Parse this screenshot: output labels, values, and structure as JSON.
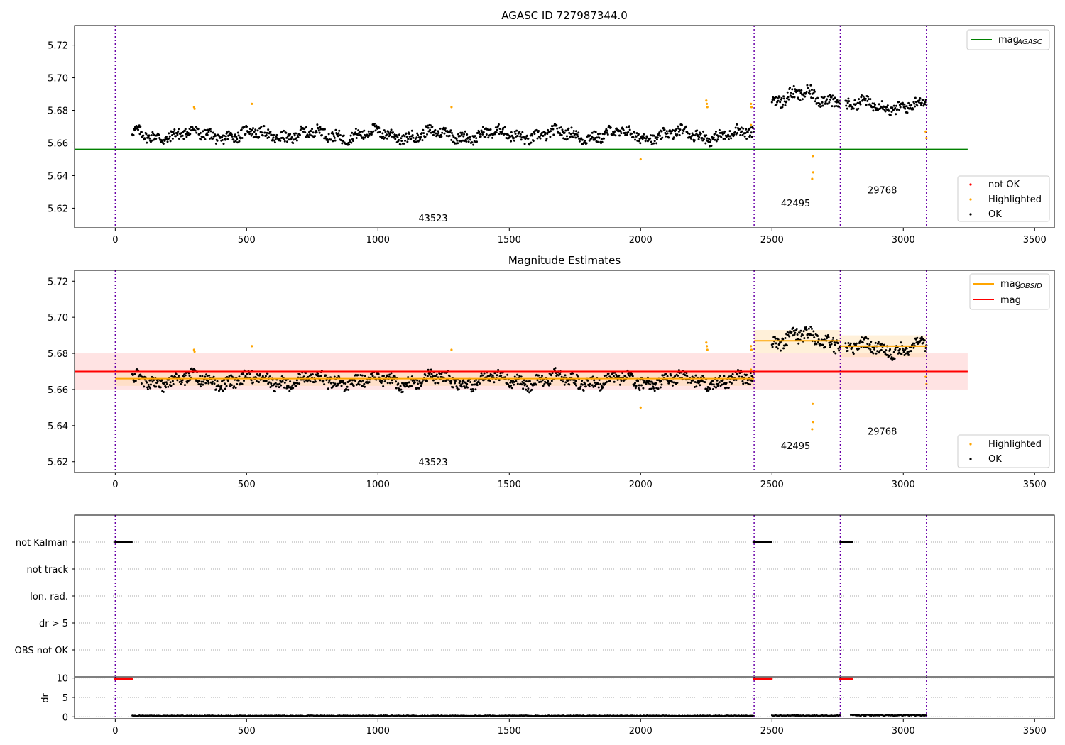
{
  "chart_data": [
    {
      "type": "scatter",
      "title": "AGASC ID 727987344.0",
      "xlim": [
        -155,
        3575
      ],
      "ylim": [
        5.608,
        5.732
      ],
      "xticks": [
        0,
        500,
        1000,
        1500,
        2000,
        2500,
        3000,
        3500
      ],
      "yticks": [
        "5.62",
        "5.64",
        "5.66",
        "5.68",
        "5.70",
        "5.72"
      ],
      "yticks_values": [
        5.62,
        5.64,
        5.66,
        5.68,
        5.7,
        5.72
      ],
      "obs_boundaries": [
        0,
        2432,
        2760,
        3088
      ],
      "obs_labels": [
        {
          "text": "43523",
          "x": 1210,
          "y": 5.612
        },
        {
          "text": "42495",
          "x": 2590,
          "y": 5.621
        },
        {
          "text": "29768",
          "x": 2920,
          "y": 5.629
        }
      ],
      "lines": [
        {
          "name": "mag",
          "sub": "AGASC",
          "color": "#008000",
          "x": [
            -155,
            3245
          ],
          "y": [
            5.656,
            5.656
          ]
        }
      ],
      "series": [
        {
          "name": "OK",
          "color": "#000000",
          "segments": [
            {
              "x0": 65,
              "x1": 2432,
              "base": 5.665,
              "amp": 0.005
            },
            {
              "x0": 2500,
              "x1": 2760,
              "base": 5.688,
              "amp": 0.006
            },
            {
              "x0": 2780,
              "x1": 3088,
              "base": 5.683,
              "amp": 0.005
            }
          ]
        },
        {
          "name": "Highlighted",
          "color": "#ffa500",
          "points": [
            [
              300,
              5.682
            ],
            [
              302,
              5.681
            ],
            [
              520,
              5.684
            ],
            [
              1280,
              5.682
            ],
            [
              2000,
              5.65
            ],
            [
              2250,
              5.686
            ],
            [
              2252,
              5.684
            ],
            [
              2254,
              5.682
            ],
            [
              2420,
              5.684
            ],
            [
              2422,
              5.682
            ],
            [
              2420,
              5.671
            ],
            [
              2655,
              5.652
            ],
            [
              2657,
              5.642
            ],
            [
              2653,
              5.638
            ],
            [
              3085,
              5.667
            ],
            [
              3088,
              5.663
            ]
          ]
        },
        {
          "name": "not OK",
          "color": "#ff0000",
          "points": []
        }
      ],
      "legend_lines": [
        "mag"
      ],
      "legend_points": [
        "not OK",
        "Highlighted",
        "OK"
      ]
    },
    {
      "type": "scatter",
      "title": "Magnitude Estimates",
      "xlim": [
        -155,
        3575
      ],
      "ylim": [
        5.614,
        5.726
      ],
      "xticks": [
        0,
        500,
        1000,
        1500,
        2000,
        2500,
        3000,
        3500
      ],
      "yticks": [
        "5.62",
        "5.64",
        "5.66",
        "5.68",
        "5.70",
        "5.72"
      ],
      "yticks_values": [
        5.62,
        5.64,
        5.66,
        5.68,
        5.7,
        5.72
      ],
      "obs_boundaries": [
        0,
        2432,
        2760,
        3088
      ],
      "obs_labels": [
        {
          "text": "43523",
          "x": 1210,
          "y": 5.618
        },
        {
          "text": "42495",
          "x": 2590,
          "y": 5.627
        },
        {
          "text": "29768",
          "x": 2920,
          "y": 5.635
        }
      ],
      "bands": [
        {
          "color": "#ffc0c0",
          "opacity": 0.45,
          "x0": -155,
          "x1": 3245,
          "y0": 5.66,
          "y1": 5.68
        },
        {
          "color": "#ffd9a0",
          "opacity": 0.4,
          "x0": 0,
          "x1": 2432,
          "y0": 5.662,
          "y1": 5.671
        },
        {
          "color": "#ffd9a0",
          "opacity": 0.4,
          "x0": 2432,
          "x1": 2760,
          "y0": 5.68,
          "y1": 5.693
        },
        {
          "color": "#ffd9a0",
          "opacity": 0.4,
          "x0": 2760,
          "x1": 3088,
          "y0": 5.678,
          "y1": 5.69
        }
      ],
      "lines": [
        {
          "name": "mag",
          "sub": "",
          "color": "#ff0000",
          "x": [
            -155,
            3245
          ],
          "y": [
            5.67,
            5.67
          ]
        },
        {
          "name": "mag",
          "sub": "OBSID",
          "color": "#ffa500",
          "x": [
            0,
            2432
          ],
          "y": [
            5.666,
            5.666
          ]
        },
        {
          "name": "mag",
          "sub": "OBSID",
          "color": "#ffa500",
          "x": [
            2432,
            2760
          ],
          "y": [
            5.687,
            5.687
          ]
        },
        {
          "name": "mag",
          "sub": "OBSID",
          "color": "#ffa500",
          "x": [
            2760,
            3088
          ],
          "y": [
            5.684,
            5.684
          ]
        }
      ],
      "series": [
        {
          "name": "OK",
          "color": "#000000",
          "segments": [
            {
              "x0": 65,
              "x1": 2432,
              "base": 5.665,
              "amp": 0.005
            },
            {
              "x0": 2500,
              "x1": 2760,
              "base": 5.688,
              "amp": 0.006
            },
            {
              "x0": 2780,
              "x1": 3088,
              "base": 5.683,
              "amp": 0.005
            }
          ]
        },
        {
          "name": "Highlighted",
          "color": "#ffa500",
          "points": [
            [
              300,
              5.682
            ],
            [
              302,
              5.681
            ],
            [
              520,
              5.684
            ],
            [
              1280,
              5.682
            ],
            [
              2000,
              5.65
            ],
            [
              2250,
              5.686
            ],
            [
              2252,
              5.684
            ],
            [
              2254,
              5.682
            ],
            [
              2420,
              5.684
            ],
            [
              2422,
              5.682
            ],
            [
              2420,
              5.671
            ],
            [
              2655,
              5.652
            ],
            [
              2657,
              5.642
            ],
            [
              2653,
              5.638
            ],
            [
              3085,
              5.667
            ],
            [
              3088,
              5.663
            ]
          ]
        }
      ],
      "legend_lines": [
        "mag_OBSID",
        "mag"
      ],
      "legend_points": [
        "Highlighted",
        "OK"
      ]
    },
    {
      "type": "scatter",
      "title": "",
      "xlim": [
        -155,
        3575
      ],
      "obs_boundaries": [
        0,
        2432,
        2760,
        3088
      ],
      "flag_rows": [
        {
          "label": "not Kalman",
          "segments": [
            [
              0,
              65
            ],
            [
              2432,
              2500
            ],
            [
              2760,
              2805
            ]
          ]
        },
        {
          "label": "not track",
          "segments": []
        },
        {
          "label": "Ion. rad.",
          "segments": []
        },
        {
          "label": "dr > 5",
          "segments": []
        },
        {
          "label": "OBS not OK",
          "segments": []
        }
      ]
    },
    {
      "type": "scatter",
      "title": "",
      "ylabel": "dr",
      "xlim": [
        -155,
        3575
      ],
      "ylim": [
        -0.5,
        10.3
      ],
      "xticks": [
        0,
        500,
        1000,
        1500,
        2000,
        2500,
        3000,
        3500
      ],
      "yticks": [
        "0",
        "5",
        "10"
      ],
      "yticks_values": [
        0,
        5,
        10
      ],
      "obs_boundaries": [
        0,
        2432,
        2760,
        3088
      ],
      "clipped": {
        "color": "#ff0000",
        "y": 9.8,
        "segments": [
          [
            0,
            65
          ],
          [
            2432,
            2500
          ],
          [
            2760,
            2805
          ]
        ]
      },
      "series": [
        {
          "name": "dr",
          "color": "#000000",
          "segments": [
            {
              "x0": 65,
              "x1": 2432,
              "base": 0.25,
              "amp": 0.2
            },
            {
              "x0": 2500,
              "x1": 2760,
              "base": 0.3,
              "amp": 0.2
            },
            {
              "x0": 2800,
              "x1": 3088,
              "base": 0.4,
              "amp": 0.3
            }
          ]
        }
      ]
    }
  ]
}
